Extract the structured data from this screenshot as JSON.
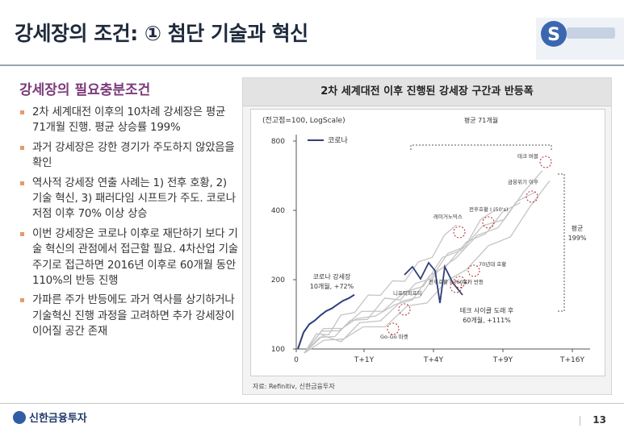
{
  "title": "강세장의 조건: ① 첨단 기술과 혁신",
  "logo_text": "S",
  "subtitle": "강세장의 필요충분조건",
  "bullets": [
    "2차 세계대전 이후의 10차례 강세장은 평균 71개월 진행. 평균 상승률 199%",
    "과거 강세장은 강한 경기가 주도하지 않았음을 확인",
    "역사적 강세장 연출 사례는 1) 전후 호황, 2) 기술 혁신, 3) 패러다임 시프트가 주도. 코로나 저점 이후 70% 이상 상승",
    "이번 강세장은 코로나 이후로 재단하기 보다 기술 혁신의 관점에서 접근할 필요. 4차산업 기술 주기로 접근하면 2016년 이후로 60개월 동안 110%의 반등 진행",
    "가파른 주가 반등에도 과거 역사를 상기하거나 기술혁신 진행 과정을 고려하면 추가 강세장이 이어질 공간 존재"
  ],
  "chart_data": {
    "type": "line",
    "title": "2차 세계대전 이후 진행된 강세장 구간과 반등폭",
    "unit_note": "(전고점=100, LogScale)",
    "yscale": "log",
    "ylim": [
      100,
      800
    ],
    "yticks": [
      "100",
      "200",
      "400",
      "800"
    ],
    "xticks": [
      "0",
      "T+1Y",
      "T+4Y",
      "T+9Y",
      "T+16Y"
    ],
    "legend": "코로나",
    "legend_position": "top-left",
    "colors": {
      "corona": "#2f3f78",
      "history": "#c4c4c4",
      "annotation": "#b22a2a"
    },
    "corona_series": {
      "name": "코로나",
      "x_months": [
        0,
        1,
        2,
        3,
        4,
        5,
        6,
        7,
        8,
        9,
        10
      ],
      "values": [
        100,
        118,
        128,
        133,
        140,
        146,
        150,
        156,
        162,
        166,
        172
      ]
    },
    "annotations": {
      "corona_label": [
        "코로나 강세장",
        "10개월, +72%"
      ],
      "avg_span_label": "평균 71개월",
      "avg_return_label": [
        "평균",
        "199%"
      ],
      "tech_cycle_label": [
        "테크 사이클 도래 후",
        "60개월, +111%"
      ],
      "events": [
        "테크 버블",
        "금융위기 이후",
        "전후호황 I (50's)",
        "레이거노믹스",
        "70년대 호황",
        "전후호황 II (60's)",
        "유가 반등",
        "니프티피프티",
        "Go-Go 마켓"
      ]
    }
  },
  "source": "자료: Refinitiv, 신한금융투자",
  "footer": {
    "brand": "신한금융투자",
    "page": "13"
  }
}
